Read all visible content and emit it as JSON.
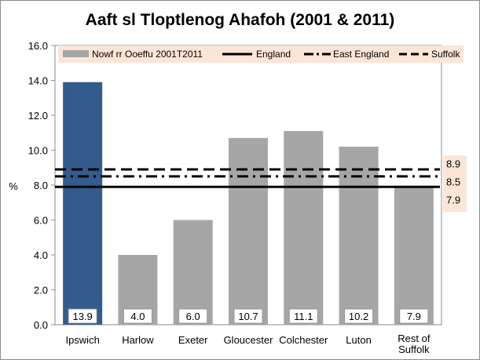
{
  "chart_data": {
    "type": "bar",
    "title": "Aaft sl Tloptlenog Ahafoh (2001 & 2011)",
    "ylabel": "%",
    "xlabel": "",
    "ylim": [
      0,
      16
    ],
    "ytick_step": 2,
    "ytick_labels": [
      "0.0",
      "2.0",
      "4.0",
      "6.0",
      "8.0",
      "10.0",
      "12.0",
      "14.0",
      "16.0"
    ],
    "categories": [
      "Ipswich",
      "Harlow",
      "Exeter",
      "Gloucester",
      "Colchester",
      "Luton",
      "Rest of Suffolk"
    ],
    "values": [
      13.9,
      4.0,
      6.0,
      10.7,
      11.1,
      10.2,
      7.9
    ],
    "value_labels": [
      "13.9",
      "4.0",
      "6.0",
      "10.7",
      "11.1",
      "10.2",
      "7.9"
    ],
    "series_name": "Nowf rr Ooeffu 2001T2011",
    "bar_colors": [
      "#335b8e",
      "#a6a6a6",
      "#a6a6a6",
      "#a6a6a6",
      "#a6a6a6",
      "#a6a6a6",
      "#a6a6a6"
    ],
    "reference_lines": [
      {
        "name": "England",
        "value": 7.9,
        "label": "7.9",
        "style": "solid"
      },
      {
        "name": "East England",
        "value": 8.5,
        "label": "8.5",
        "style": "dashdot"
      },
      {
        "name": "Suffolk",
        "value": 8.9,
        "label": "8.9",
        "style": "dashed"
      }
    ],
    "legend_position": "top",
    "grid": false,
    "colors": {
      "legend_bg": "#fbe5d6",
      "ref_label_bg": "#fbe5d6",
      "plot_bg": "#ffffff"
    }
  }
}
